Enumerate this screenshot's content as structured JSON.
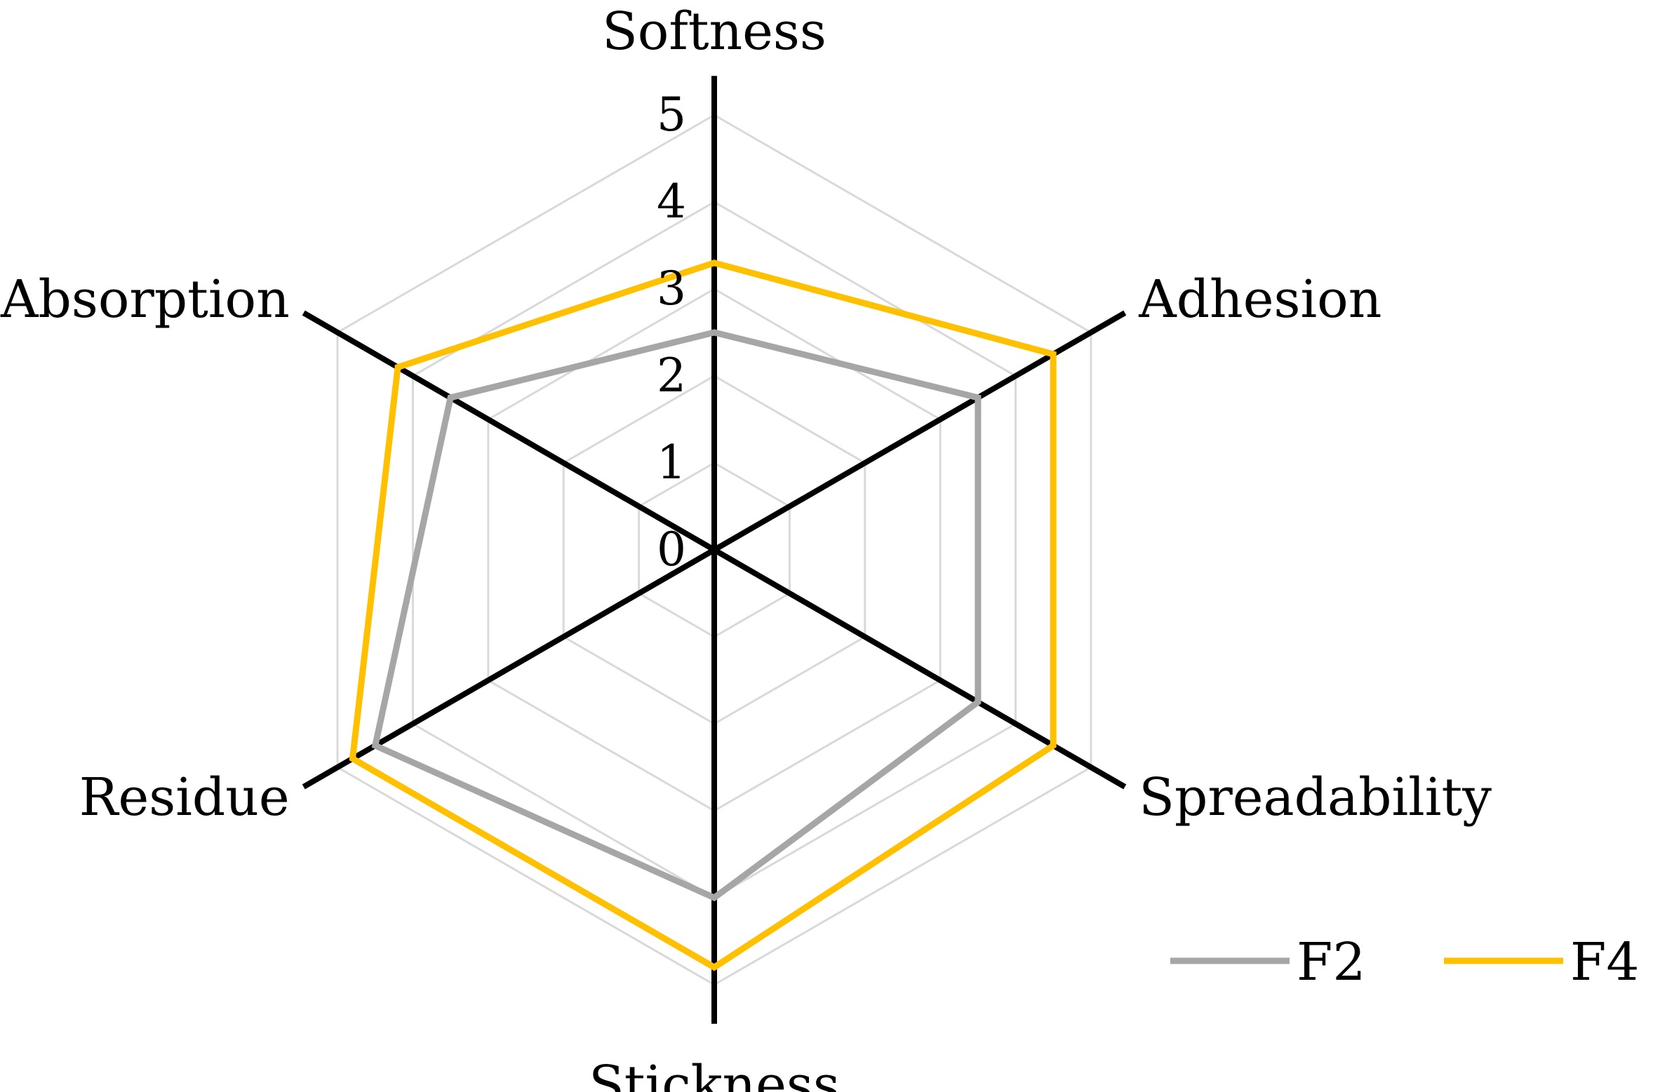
{
  "chart_data": {
    "type": "radar",
    "axes": [
      "Softness",
      "Adhesion",
      "Spreadability",
      "Stickness",
      "Residue",
      "Absorption"
    ],
    "scale": {
      "min": 0,
      "max": 5,
      "ticks": [
        0,
        1,
        2,
        3,
        4,
        5
      ]
    },
    "grid": true,
    "legend": {
      "position": "bottom-right"
    },
    "series": [
      {
        "name": "F2",
        "color": "#a6a6a6",
        "values": [
          2.5,
          3.5,
          3.5,
          4.0,
          4.5,
          3.5
        ]
      },
      {
        "name": "F4",
        "color": "#ffc000",
        "values": [
          3.3,
          4.5,
          4.5,
          4.8,
          4.8,
          4.2
        ]
      }
    ],
    "colors": {
      "axis": "#000000",
      "grid": "#d9d9d9"
    }
  }
}
